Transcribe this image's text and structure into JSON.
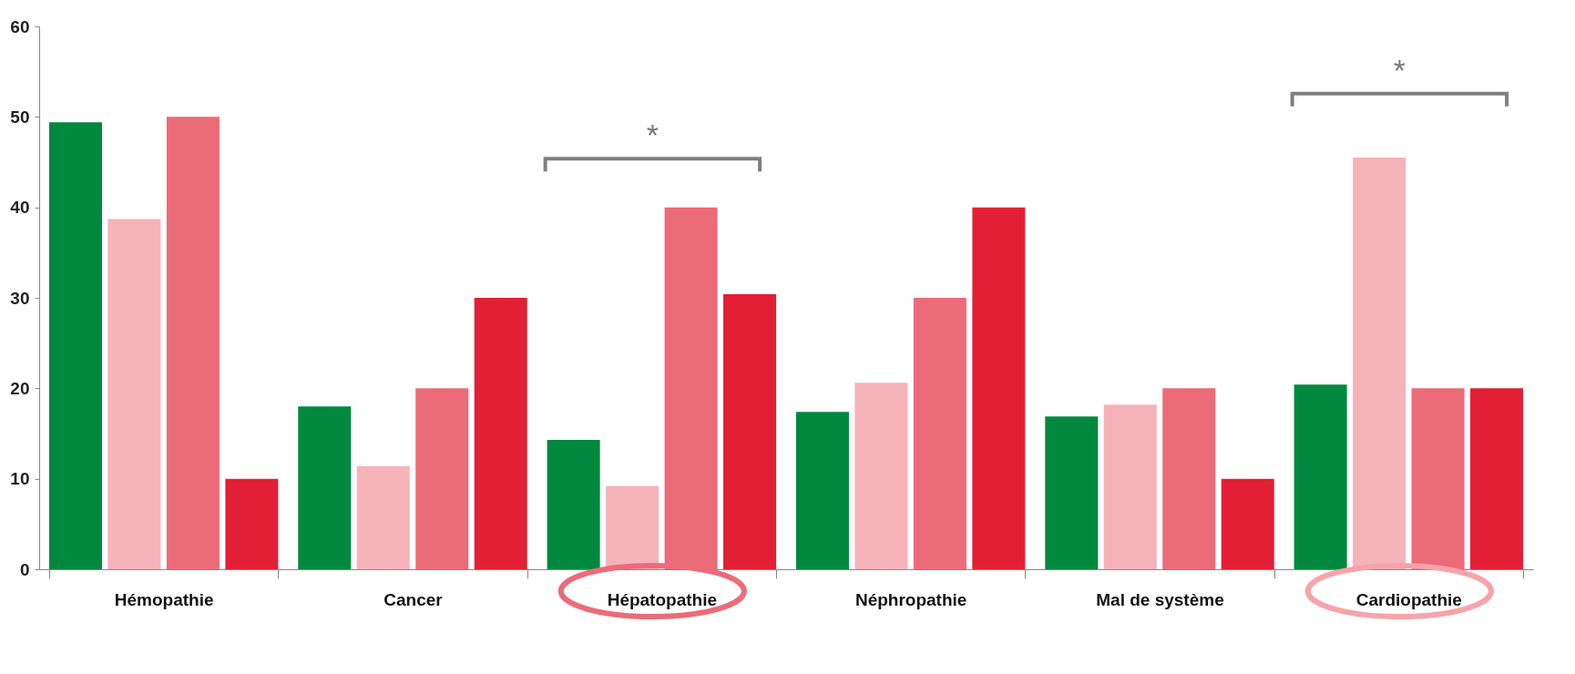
{
  "chart_data": {
    "type": "bar",
    "categories": [
      "Hémopathie",
      "Cancer",
      "Hépatopathie",
      "Néphropathie",
      "Mal de système",
      "Cardiopathie"
    ],
    "series": [
      {
        "color": "#00883e",
        "values": [
          49.4,
          18,
          14.3,
          17.4,
          16.9,
          20.4
        ]
      },
      {
        "color": "#f5b3b9",
        "values": [
          38.7,
          11.4,
          9.2,
          20.6,
          18.2,
          45.5
        ]
      },
      {
        "color": "#ec6b78",
        "values": [
          50,
          20,
          40,
          30,
          20,
          20
        ]
      },
      {
        "color": "#e31f35",
        "values": [
          10,
          30,
          30.4,
          40,
          10,
          20
        ]
      }
    ],
    "ylim": [
      0,
      60
    ],
    "yticks": [
      0,
      10,
      20,
      30,
      40,
      50,
      60
    ],
    "grid": false,
    "legend": false,
    "annotations": [
      "*",
      "*"
    ]
  }
}
